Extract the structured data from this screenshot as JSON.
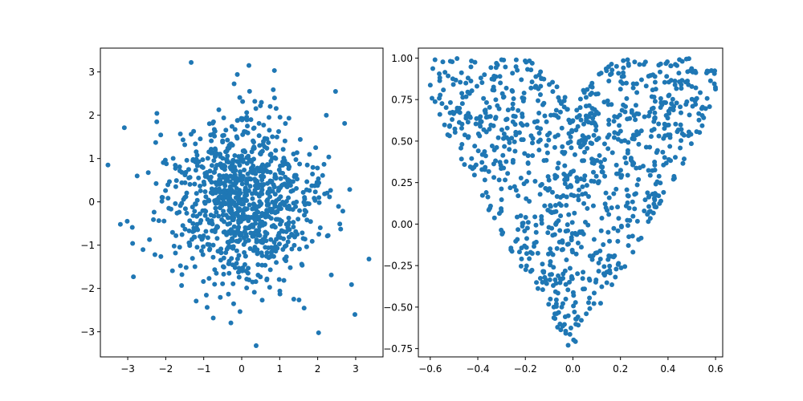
{
  "chart_data": [
    {
      "type": "scatter",
      "marker_color": "#1f77b4",
      "xlim": [
        -3.72,
        3.72
      ],
      "ylim": [
        -3.58,
        3.55
      ],
      "xticks": [
        -3,
        -2,
        -1,
        0,
        1,
        2,
        3
      ],
      "yticks": [
        -3,
        -2,
        -1,
        0,
        1,
        2,
        3
      ],
      "xticklabels": [
        "−3",
        "−2",
        "−1",
        "0",
        "1",
        "2",
        "3"
      ],
      "yticklabels": [
        "−3",
        "−2",
        "−1",
        "0",
        "1",
        "2",
        "3"
      ],
      "distribution": "bivariate normal, mean 0, std 1",
      "n_points": 1000,
      "notable_points": [
        [
          -3.52,
          0.85
        ],
        [
          3.35,
          -1.32
        ],
        [
          2.98,
          -2.6
        ],
        [
          0.38,
          -3.32
        ],
        [
          -1.33,
          3.22
        ],
        [
          0.19,
          3.15
        ],
        [
          -2.85,
          -1.73
        ],
        [
          2.47,
          2.55
        ]
      ]
    },
    {
      "type": "scatter",
      "marker_color": "#1f77b4",
      "xlim": [
        -0.65,
        0.63
      ],
      "ylim": [
        -0.8,
        1.06
      ],
      "xticks": [
        -0.6,
        -0.4,
        -0.2,
        0.0,
        0.2,
        0.4,
        0.6
      ],
      "yticks": [
        -0.75,
        -0.5,
        -0.25,
        0.0,
        0.25,
        0.5,
        0.75,
        1.0
      ],
      "xticklabels": [
        "−0.6",
        "−0.4",
        "−0.2",
        "0.0",
        "0.2",
        "0.4",
        "0.6"
      ],
      "yticklabels": [
        "−0.75",
        "−0.50",
        "−0.25",
        "0.00",
        "0.25",
        "0.50",
        "0.75",
        "1.00"
      ],
      "distribution": "heart-shaped region: |x| < 0.6, y between heart bottom and top curve",
      "n_points": 1000,
      "notable_points": [
        [
          -0.58,
          0.99
        ],
        [
          0.57,
          0.92
        ],
        [
          -0.02,
          -0.73
        ],
        [
          0.23,
          0.99
        ],
        [
          0.46,
          0.98
        ],
        [
          -0.3,
          0.99
        ]
      ]
    }
  ]
}
